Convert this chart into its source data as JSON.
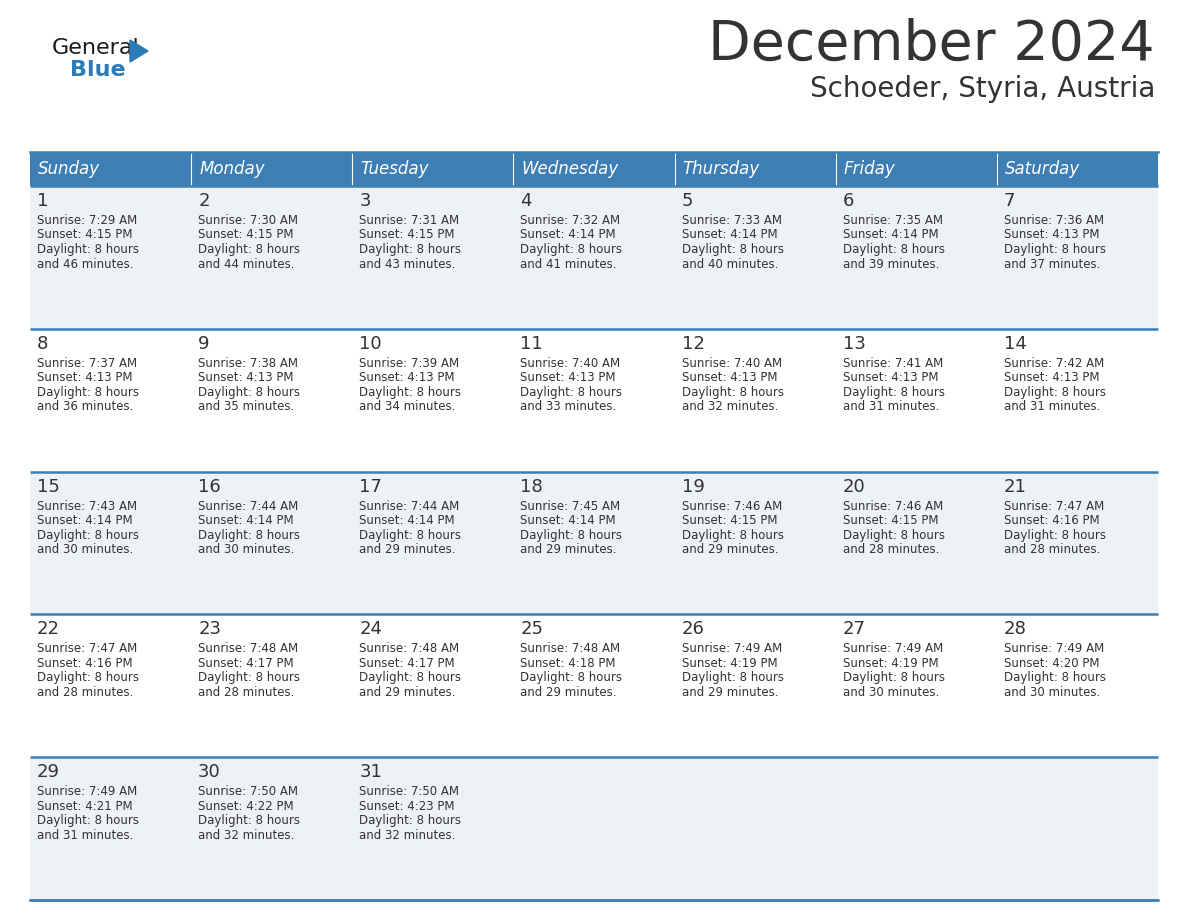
{
  "title": "December 2024",
  "subtitle": "Schoeder, Styria, Austria",
  "header_color": "#3d7eb5",
  "header_text_color": "#ffffff",
  "cell_bg_even": "#eef2f7",
  "cell_bg_odd": "#ffffff",
  "border_color": "#3d7eb5",
  "days_of_week": [
    "Sunday",
    "Monday",
    "Tuesday",
    "Wednesday",
    "Thursday",
    "Friday",
    "Saturday"
  ],
  "calendar_data": [
    [
      {
        "day": "1",
        "sunrise": "7:29 AM",
        "sunset": "4:15 PM",
        "daylight_mins": "46"
      },
      {
        "day": "2",
        "sunrise": "7:30 AM",
        "sunset": "4:15 PM",
        "daylight_mins": "44"
      },
      {
        "day": "3",
        "sunrise": "7:31 AM",
        "sunset": "4:15 PM",
        "daylight_mins": "43"
      },
      {
        "day": "4",
        "sunrise": "7:32 AM",
        "sunset": "4:14 PM",
        "daylight_mins": "41"
      },
      {
        "day": "5",
        "sunrise": "7:33 AM",
        "sunset": "4:14 PM",
        "daylight_mins": "40"
      },
      {
        "day": "6",
        "sunrise": "7:35 AM",
        "sunset": "4:14 PM",
        "daylight_mins": "39"
      },
      {
        "day": "7",
        "sunrise": "7:36 AM",
        "sunset": "4:13 PM",
        "daylight_mins": "37"
      }
    ],
    [
      {
        "day": "8",
        "sunrise": "7:37 AM",
        "sunset": "4:13 PM",
        "daylight_mins": "36"
      },
      {
        "day": "9",
        "sunrise": "7:38 AM",
        "sunset": "4:13 PM",
        "daylight_mins": "35"
      },
      {
        "day": "10",
        "sunrise": "7:39 AM",
        "sunset": "4:13 PM",
        "daylight_mins": "34"
      },
      {
        "day": "11",
        "sunrise": "7:40 AM",
        "sunset": "4:13 PM",
        "daylight_mins": "33"
      },
      {
        "day": "12",
        "sunrise": "7:40 AM",
        "sunset": "4:13 PM",
        "daylight_mins": "32"
      },
      {
        "day": "13",
        "sunrise": "7:41 AM",
        "sunset": "4:13 PM",
        "daylight_mins": "31"
      },
      {
        "day": "14",
        "sunrise": "7:42 AM",
        "sunset": "4:13 PM",
        "daylight_mins": "31"
      }
    ],
    [
      {
        "day": "15",
        "sunrise": "7:43 AM",
        "sunset": "4:14 PM",
        "daylight_mins": "30"
      },
      {
        "day": "16",
        "sunrise": "7:44 AM",
        "sunset": "4:14 PM",
        "daylight_mins": "30"
      },
      {
        "day": "17",
        "sunrise": "7:44 AM",
        "sunset": "4:14 PM",
        "daylight_mins": "29"
      },
      {
        "day": "18",
        "sunrise": "7:45 AM",
        "sunset": "4:14 PM",
        "daylight_mins": "29"
      },
      {
        "day": "19",
        "sunrise": "7:46 AM",
        "sunset": "4:15 PM",
        "daylight_mins": "29"
      },
      {
        "day": "20",
        "sunrise": "7:46 AM",
        "sunset": "4:15 PM",
        "daylight_mins": "28"
      },
      {
        "day": "21",
        "sunrise": "7:47 AM",
        "sunset": "4:16 PM",
        "daylight_mins": "28"
      }
    ],
    [
      {
        "day": "22",
        "sunrise": "7:47 AM",
        "sunset": "4:16 PM",
        "daylight_mins": "28"
      },
      {
        "day": "23",
        "sunrise": "7:48 AM",
        "sunset": "4:17 PM",
        "daylight_mins": "28"
      },
      {
        "day": "24",
        "sunrise": "7:48 AM",
        "sunset": "4:17 PM",
        "daylight_mins": "29"
      },
      {
        "day": "25",
        "sunrise": "7:48 AM",
        "sunset": "4:18 PM",
        "daylight_mins": "29"
      },
      {
        "day": "26",
        "sunrise": "7:49 AM",
        "sunset": "4:19 PM",
        "daylight_mins": "29"
      },
      {
        "day": "27",
        "sunrise": "7:49 AM",
        "sunset": "4:19 PM",
        "daylight_mins": "30"
      },
      {
        "day": "28",
        "sunrise": "7:49 AM",
        "sunset": "4:20 PM",
        "daylight_mins": "30"
      }
    ],
    [
      {
        "day": "29",
        "sunrise": "7:49 AM",
        "sunset": "4:21 PM",
        "daylight_mins": "31"
      },
      {
        "day": "30",
        "sunrise": "7:50 AM",
        "sunset": "4:22 PM",
        "daylight_mins": "32"
      },
      {
        "day": "31",
        "sunrise": "7:50 AM",
        "sunset": "4:23 PM",
        "daylight_mins": "32"
      },
      null,
      null,
      null,
      null
    ]
  ],
  "text_color": "#333333",
  "logo_general_color": "#1a1a1a",
  "logo_blue_color": "#2b7bb9",
  "triangle_color": "#2b7bb9",
  "title_fontsize": 40,
  "subtitle_fontsize": 20,
  "header_fontsize": 12,
  "day_number_fontsize": 13,
  "cell_text_fontsize": 8.5
}
